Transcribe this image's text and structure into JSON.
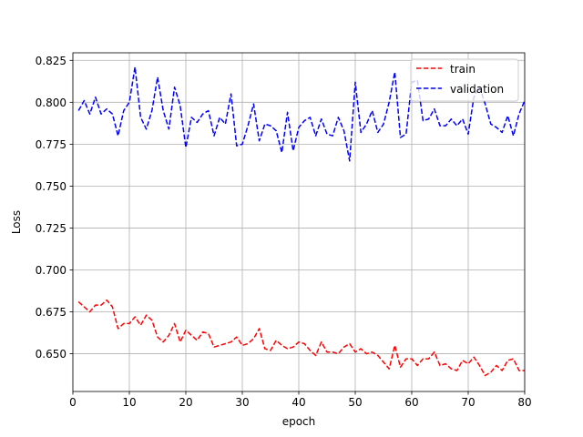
{
  "chart_data": {
    "type": "line",
    "title": "",
    "xlabel": "epoch",
    "ylabel": "Loss",
    "xlim": [
      0,
      80
    ],
    "ylim": [
      0.6275,
      0.8295
    ],
    "x_ticks": [
      0,
      10,
      20,
      30,
      40,
      50,
      60,
      70,
      80
    ],
    "x_tick_labels": [
      "0",
      "10",
      "20",
      "30",
      "40",
      "50",
      "60",
      "70",
      "80"
    ],
    "y_ticks": [
      0.65,
      0.675,
      0.7,
      0.725,
      0.75,
      0.775,
      0.8,
      0.825
    ],
    "y_tick_labels": [
      "0.650",
      "0.675",
      "0.700",
      "0.725",
      "0.750",
      "0.775",
      "0.800",
      "0.825"
    ],
    "grid": true,
    "legend_position": "upper right",
    "x": [
      1,
      2,
      3,
      4,
      5,
      6,
      7,
      8,
      9,
      10,
      11,
      12,
      13,
      14,
      15,
      16,
      17,
      18,
      19,
      20,
      21,
      22,
      23,
      24,
      25,
      26,
      27,
      28,
      29,
      30,
      31,
      32,
      33,
      34,
      35,
      36,
      37,
      38,
      39,
      40,
      41,
      42,
      43,
      44,
      45,
      46,
      47,
      48,
      49,
      50,
      51,
      52,
      53,
      54,
      55,
      56,
      57,
      58,
      59,
      60,
      61,
      62,
      63,
      64,
      65,
      66,
      67,
      68,
      69,
      70,
      71,
      72,
      73,
      74,
      75,
      76,
      77,
      78,
      79,
      80
    ],
    "series": [
      {
        "name": "train",
        "color": "#ff0000",
        "dash": "dashed",
        "values": [
          0.681,
          0.678,
          0.675,
          0.679,
          0.679,
          0.682,
          0.678,
          0.665,
          0.668,
          0.668,
          0.672,
          0.667,
          0.673,
          0.67,
          0.66,
          0.657,
          0.661,
          0.668,
          0.657,
          0.664,
          0.661,
          0.658,
          0.663,
          0.662,
          0.654,
          0.655,
          0.656,
          0.657,
          0.66,
          0.655,
          0.656,
          0.659,
          0.665,
          0.653,
          0.652,
          0.658,
          0.655,
          0.653,
          0.654,
          0.657,
          0.656,
          0.652,
          0.649,
          0.657,
          0.651,
          0.651,
          0.65,
          0.654,
          0.656,
          0.651,
          0.653,
          0.65,
          0.651,
          0.649,
          0.645,
          0.641,
          0.655,
          0.642,
          0.647,
          0.647,
          0.643,
          0.647,
          0.647,
          0.651,
          0.643,
          0.644,
          0.641,
          0.64,
          0.646,
          0.644,
          0.648,
          0.643,
          0.637,
          0.639,
          0.643,
          0.64,
          0.646,
          0.647,
          0.64,
          0.64
        ]
      },
      {
        "name": "validation",
        "color": "#0000ff",
        "dash": "dashed",
        "values": [
          0.795,
          0.801,
          0.793,
          0.803,
          0.793,
          0.796,
          0.793,
          0.78,
          0.795,
          0.8,
          0.821,
          0.791,
          0.784,
          0.795,
          0.815,
          0.795,
          0.784,
          0.809,
          0.798,
          0.773,
          0.791,
          0.788,
          0.793,
          0.795,
          0.78,
          0.791,
          0.787,
          0.805,
          0.774,
          0.775,
          0.786,
          0.799,
          0.777,
          0.787,
          0.786,
          0.783,
          0.77,
          0.794,
          0.771,
          0.785,
          0.789,
          0.791,
          0.78,
          0.79,
          0.781,
          0.78,
          0.791,
          0.783,
          0.765,
          0.812,
          0.782,
          0.787,
          0.795,
          0.782,
          0.787,
          0.8,
          0.818,
          0.779,
          0.781,
          0.812,
          0.813,
          0.789,
          0.79,
          0.796,
          0.786,
          0.786,
          0.79,
          0.786,
          0.79,
          0.781,
          0.803,
          0.809,
          0.799,
          0.787,
          0.785,
          0.782,
          0.792,
          0.78,
          0.793,
          0.801
        ]
      }
    ]
  }
}
